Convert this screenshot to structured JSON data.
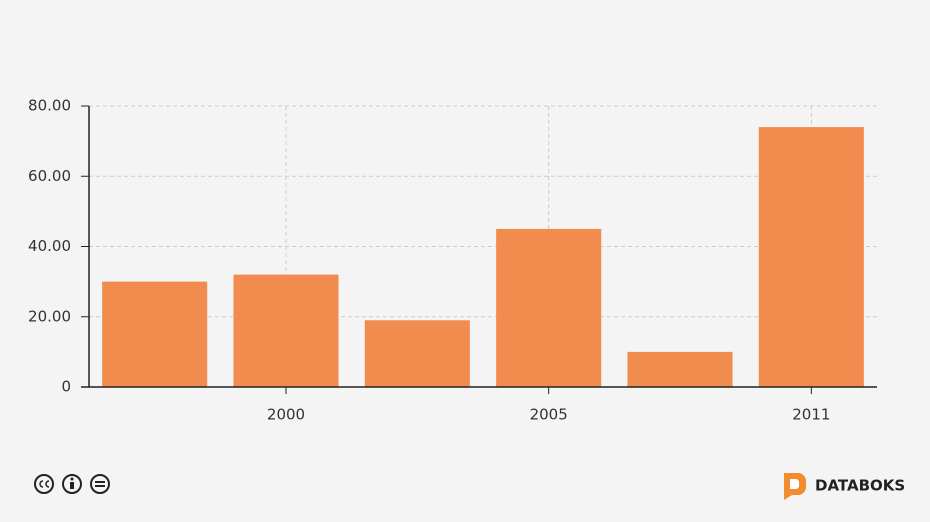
{
  "chart_data": {
    "type": "bar",
    "categories": [
      null,
      "2000",
      null,
      "2005",
      null,
      "2011"
    ],
    "values": [
      30,
      32,
      19,
      45,
      10,
      74
    ],
    "color": "#f28c4e",
    "ylim": [
      0,
      80
    ],
    "yticks": [
      0,
      {
        "value": 20,
        "label": "20.00"
      },
      {
        "value": 40,
        "label": "40.00"
      },
      {
        "value": 60,
        "label": "60.00"
      },
      {
        "value": 80,
        "label": "80.00"
      }
    ],
    "grid": true
  },
  "footer": {
    "brand": "DATABOKS"
  }
}
